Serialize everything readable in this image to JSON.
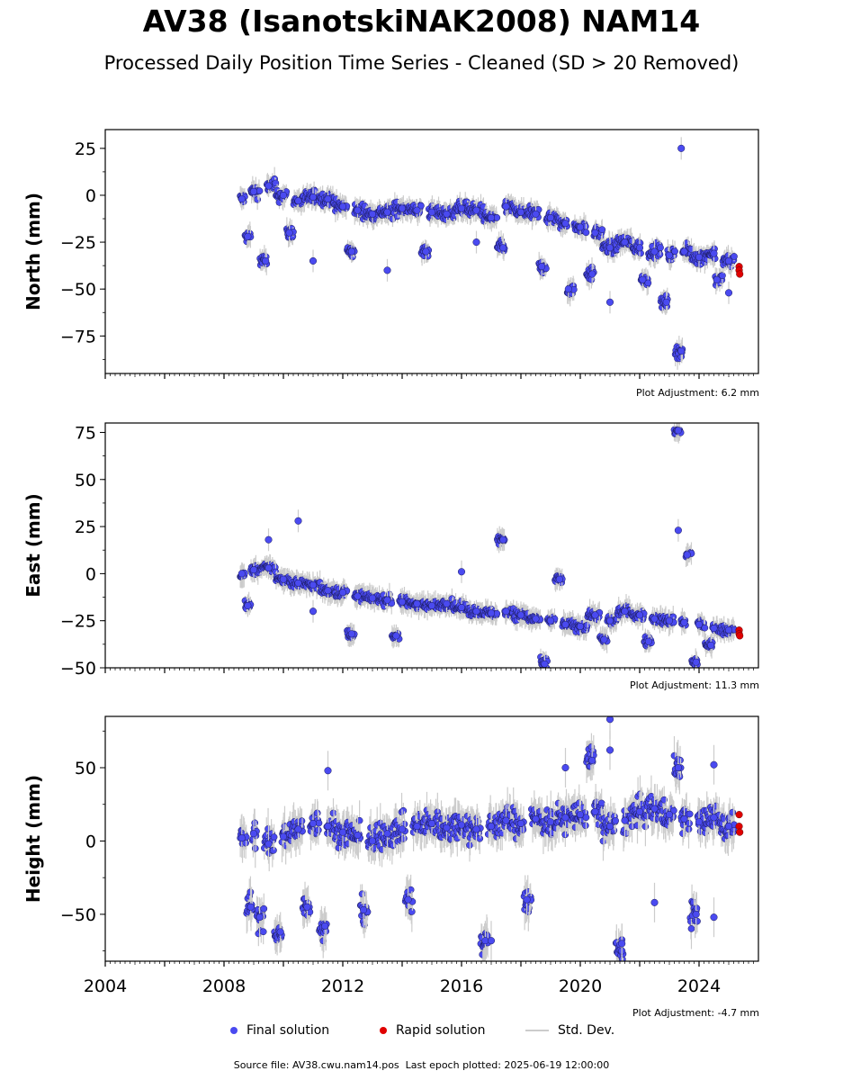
{
  "figure": {
    "title": "AV38 (IsanotskiNAK2008) NAM14",
    "subtitle": "Processed Daily Position Time Series - Cleaned (SD > 20 Removed)",
    "source_file_text": "Source file: AV38.cwu.nam14.pos",
    "last_epoch_text": "Last epoch plotted: 2025-06-19 12:00:00",
    "colors": {
      "final": "#4a4af0",
      "rapid": "#e00000",
      "std_dev": "#cccccc"
    }
  },
  "legend": {
    "final": "Final solution",
    "rapid": "Rapid solution",
    "stddev": "Std. Dev."
  },
  "chart_data": [
    {
      "type": "scatter",
      "ylabel": "North (mm)",
      "plot_adjustment": "Plot Adjustment: 6.2 mm",
      "xlim": [
        2004,
        2026
      ],
      "ylim": [
        -95,
        35
      ],
      "yticks": [
        "25",
        "0",
        "−25",
        "−50",
        "−75"
      ],
      "xticks": [],
      "grid": false,
      "series": [
        {
          "points": [
            [
              2008.6,
              -2
            ],
            [
              2009.0,
              2
            ],
            [
              2009.5,
              5
            ],
            [
              2010.0,
              0
            ],
            [
              2010.5,
              -3
            ],
            [
              2011.0,
              -1
            ],
            [
              2011.5,
              -2
            ],
            [
              2012.0,
              -6
            ],
            [
              2012.5,
              -8
            ],
            [
              2013.0,
              -10
            ],
            [
              2013.5,
              -9
            ],
            [
              2014.0,
              -7
            ],
            [
              2014.5,
              -8
            ],
            [
              2015.0,
              -9
            ],
            [
              2015.5,
              -10
            ],
            [
              2016.0,
              -7
            ],
            [
              2016.5,
              -8
            ],
            [
              2017.0,
              -12
            ],
            [
              2017.5,
              -6
            ],
            [
              2018.0,
              -9
            ],
            [
              2018.5,
              -10
            ],
            [
              2019.0,
              -12
            ],
            [
              2019.5,
              -15
            ],
            [
              2020.0,
              -17
            ],
            [
              2020.5,
              -20
            ],
            [
              2021.0,
              -28
            ],
            [
              2021.5,
              -25
            ],
            [
              2022.0,
              -28
            ],
            [
              2022.5,
              -30
            ],
            [
              2023.0,
              -32
            ],
            [
              2023.5,
              -30
            ],
            [
              2024.0,
              -33
            ],
            [
              2024.5,
              -31
            ],
            [
              2025.0,
              -35
            ],
            [
              2008.8,
              -22
            ],
            [
              2009.4,
              -35
            ],
            [
              2010.2,
              -20
            ],
            [
              2011.0,
              -35
            ],
            [
              2012.3,
              -30
            ],
            [
              2013.5,
              -40
            ],
            [
              2014.8,
              -30
            ],
            [
              2016.5,
              -25
            ],
            [
              2017.4,
              -28
            ],
            [
              2018.7,
              -38
            ],
            [
              2019.6,
              -50
            ],
            [
              2020.4,
              -42
            ],
            [
              2021.0,
              -57
            ],
            [
              2022.1,
              -45
            ],
            [
              2022.9,
              -57
            ],
            [
              2023.4,
              -83
            ],
            [
              2023.4,
              25
            ],
            [
              2024.6,
              -45
            ],
            [
              2025.0,
              -52
            ]
          ]
        },
        {
          "name": "rapid",
          "points": [
            [
              2025.35,
              -38
            ],
            [
              2025.35,
              -40
            ],
            [
              2025.37,
              -42
            ]
          ]
        }
      ]
    },
    {
      "type": "scatter",
      "ylabel": "East (mm)",
      "plot_adjustment": "Plot Adjustment: 11.3 mm",
      "xlim": [
        2004,
        2026
      ],
      "ylim": [
        -50,
        80
      ],
      "yticks": [
        "75",
        "50",
        "25",
        "0",
        "−25",
        "−50"
      ],
      "xticks": [],
      "grid": false,
      "series": [
        {
          "points": [
            [
              2008.6,
              0
            ],
            [
              2009.0,
              2
            ],
            [
              2009.5,
              3
            ],
            [
              2010.0,
              -3
            ],
            [
              2010.5,
              -5
            ],
            [
              2011.0,
              -6
            ],
            [
              2011.5,
              -9
            ],
            [
              2012.0,
              -10
            ],
            [
              2012.5,
              -12
            ],
            [
              2013.0,
              -13
            ],
            [
              2013.5,
              -14
            ],
            [
              2014.0,
              -15
            ],
            [
              2014.5,
              -16
            ],
            [
              2015.0,
              -17
            ],
            [
              2015.5,
              -16
            ],
            [
              2016.0,
              -18
            ],
            [
              2016.5,
              -20
            ],
            [
              2017.0,
              -21
            ],
            [
              2017.5,
              -20
            ],
            [
              2018.0,
              -22
            ],
            [
              2018.5,
              -24
            ],
            [
              2019.0,
              -25
            ],
            [
              2019.5,
              -27
            ],
            [
              2020.0,
              -28
            ],
            [
              2020.5,
              -22
            ],
            [
              2021.0,
              -25
            ],
            [
              2021.5,
              -20
            ],
            [
              2022.0,
              -22
            ],
            [
              2022.5,
              -24
            ],
            [
              2023.0,
              -25
            ],
            [
              2023.5,
              -26
            ],
            [
              2024.0,
              -27
            ],
            [
              2024.5,
              -29
            ],
            [
              2025.0,
              -30
            ],
            [
              2008.8,
              -17
            ],
            [
              2009.5,
              18
            ],
            [
              2010.5,
              28
            ],
            [
              2011.0,
              -20
            ],
            [
              2012.3,
              -32
            ],
            [
              2013.8,
              -33
            ],
            [
              2016.0,
              1
            ],
            [
              2017.4,
              18
            ],
            [
              2018.8,
              -48
            ],
            [
              2019.3,
              -3
            ],
            [
              2020.8,
              -35
            ],
            [
              2022.3,
              -36
            ],
            [
              2023.3,
              76
            ],
            [
              2023.3,
              23
            ],
            [
              2023.6,
              10
            ],
            [
              2023.9,
              -47
            ],
            [
              2024.4,
              -38
            ]
          ]
        },
        {
          "name": "rapid",
          "points": [
            [
              2025.35,
              -30
            ],
            [
              2025.35,
              -32
            ],
            [
              2025.37,
              -33
            ]
          ]
        }
      ]
    },
    {
      "type": "scatter",
      "ylabel": "Height (mm)",
      "plot_adjustment": "Plot Adjustment: -4.7 mm",
      "xlim": [
        2004,
        2026
      ],
      "ylim": [
        -82,
        85
      ],
      "yticks": [
        "50",
        "0",
        "−50"
      ],
      "xticks": [
        "2004",
        "2008",
        "2012",
        "2016",
        "2020",
        "2024"
      ],
      "grid": false,
      "series": [
        {
          "points": [
            [
              2008.6,
              2
            ],
            [
              2009.0,
              5
            ],
            [
              2009.5,
              -2
            ],
            [
              2010.0,
              3
            ],
            [
              2010.5,
              8
            ],
            [
              2011.0,
              12
            ],
            [
              2011.5,
              10
            ],
            [
              2012.0,
              6
            ],
            [
              2012.5,
              4
            ],
            [
              2013.0,
              0
            ],
            [
              2013.5,
              5
            ],
            [
              2014.0,
              8
            ],
            [
              2014.5,
              10
            ],
            [
              2015.0,
              12
            ],
            [
              2015.5,
              9
            ],
            [
              2016.0,
              11
            ],
            [
              2016.5,
              8
            ],
            [
              2017.0,
              10
            ],
            [
              2017.5,
              14
            ],
            [
              2018.0,
              12
            ],
            [
              2018.5,
              15
            ],
            [
              2019.0,
              13
            ],
            [
              2019.5,
              16
            ],
            [
              2020.0,
              18
            ],
            [
              2020.5,
              20
            ],
            [
              2021.0,
              10
            ],
            [
              2021.5,
              14
            ],
            [
              2022.0,
              20
            ],
            [
              2022.5,
              22
            ],
            [
              2023.0,
              18
            ],
            [
              2023.5,
              15
            ],
            [
              2024.0,
              13
            ],
            [
              2024.5,
              16
            ],
            [
              2025.0,
              10
            ],
            [
              2008.9,
              -45
            ],
            [
              2009.2,
              -52
            ],
            [
              2009.9,
              -62
            ],
            [
              2010.8,
              -45
            ],
            [
              2011.4,
              -58
            ],
            [
              2011.5,
              48
            ],
            [
              2012.7,
              -47
            ],
            [
              2014.2,
              -40
            ],
            [
              2016.8,
              -68
            ],
            [
              2017.0,
              -68
            ],
            [
              2018.2,
              -40
            ],
            [
              2019.5,
              50
            ],
            [
              2020.4,
              55
            ],
            [
              2021.0,
              83
            ],
            [
              2021.0,
              62
            ],
            [
              2021.4,
              -75
            ],
            [
              2021.4,
              -70
            ],
            [
              2022.5,
              -42
            ],
            [
              2023.3,
              50
            ],
            [
              2023.9,
              -50
            ],
            [
              2024.5,
              -52
            ],
            [
              2024.5,
              52
            ]
          ]
        },
        {
          "name": "rapid",
          "points": [
            [
              2025.35,
              18
            ],
            [
              2025.35,
              10
            ],
            [
              2025.37,
              6
            ]
          ]
        }
      ]
    }
  ]
}
